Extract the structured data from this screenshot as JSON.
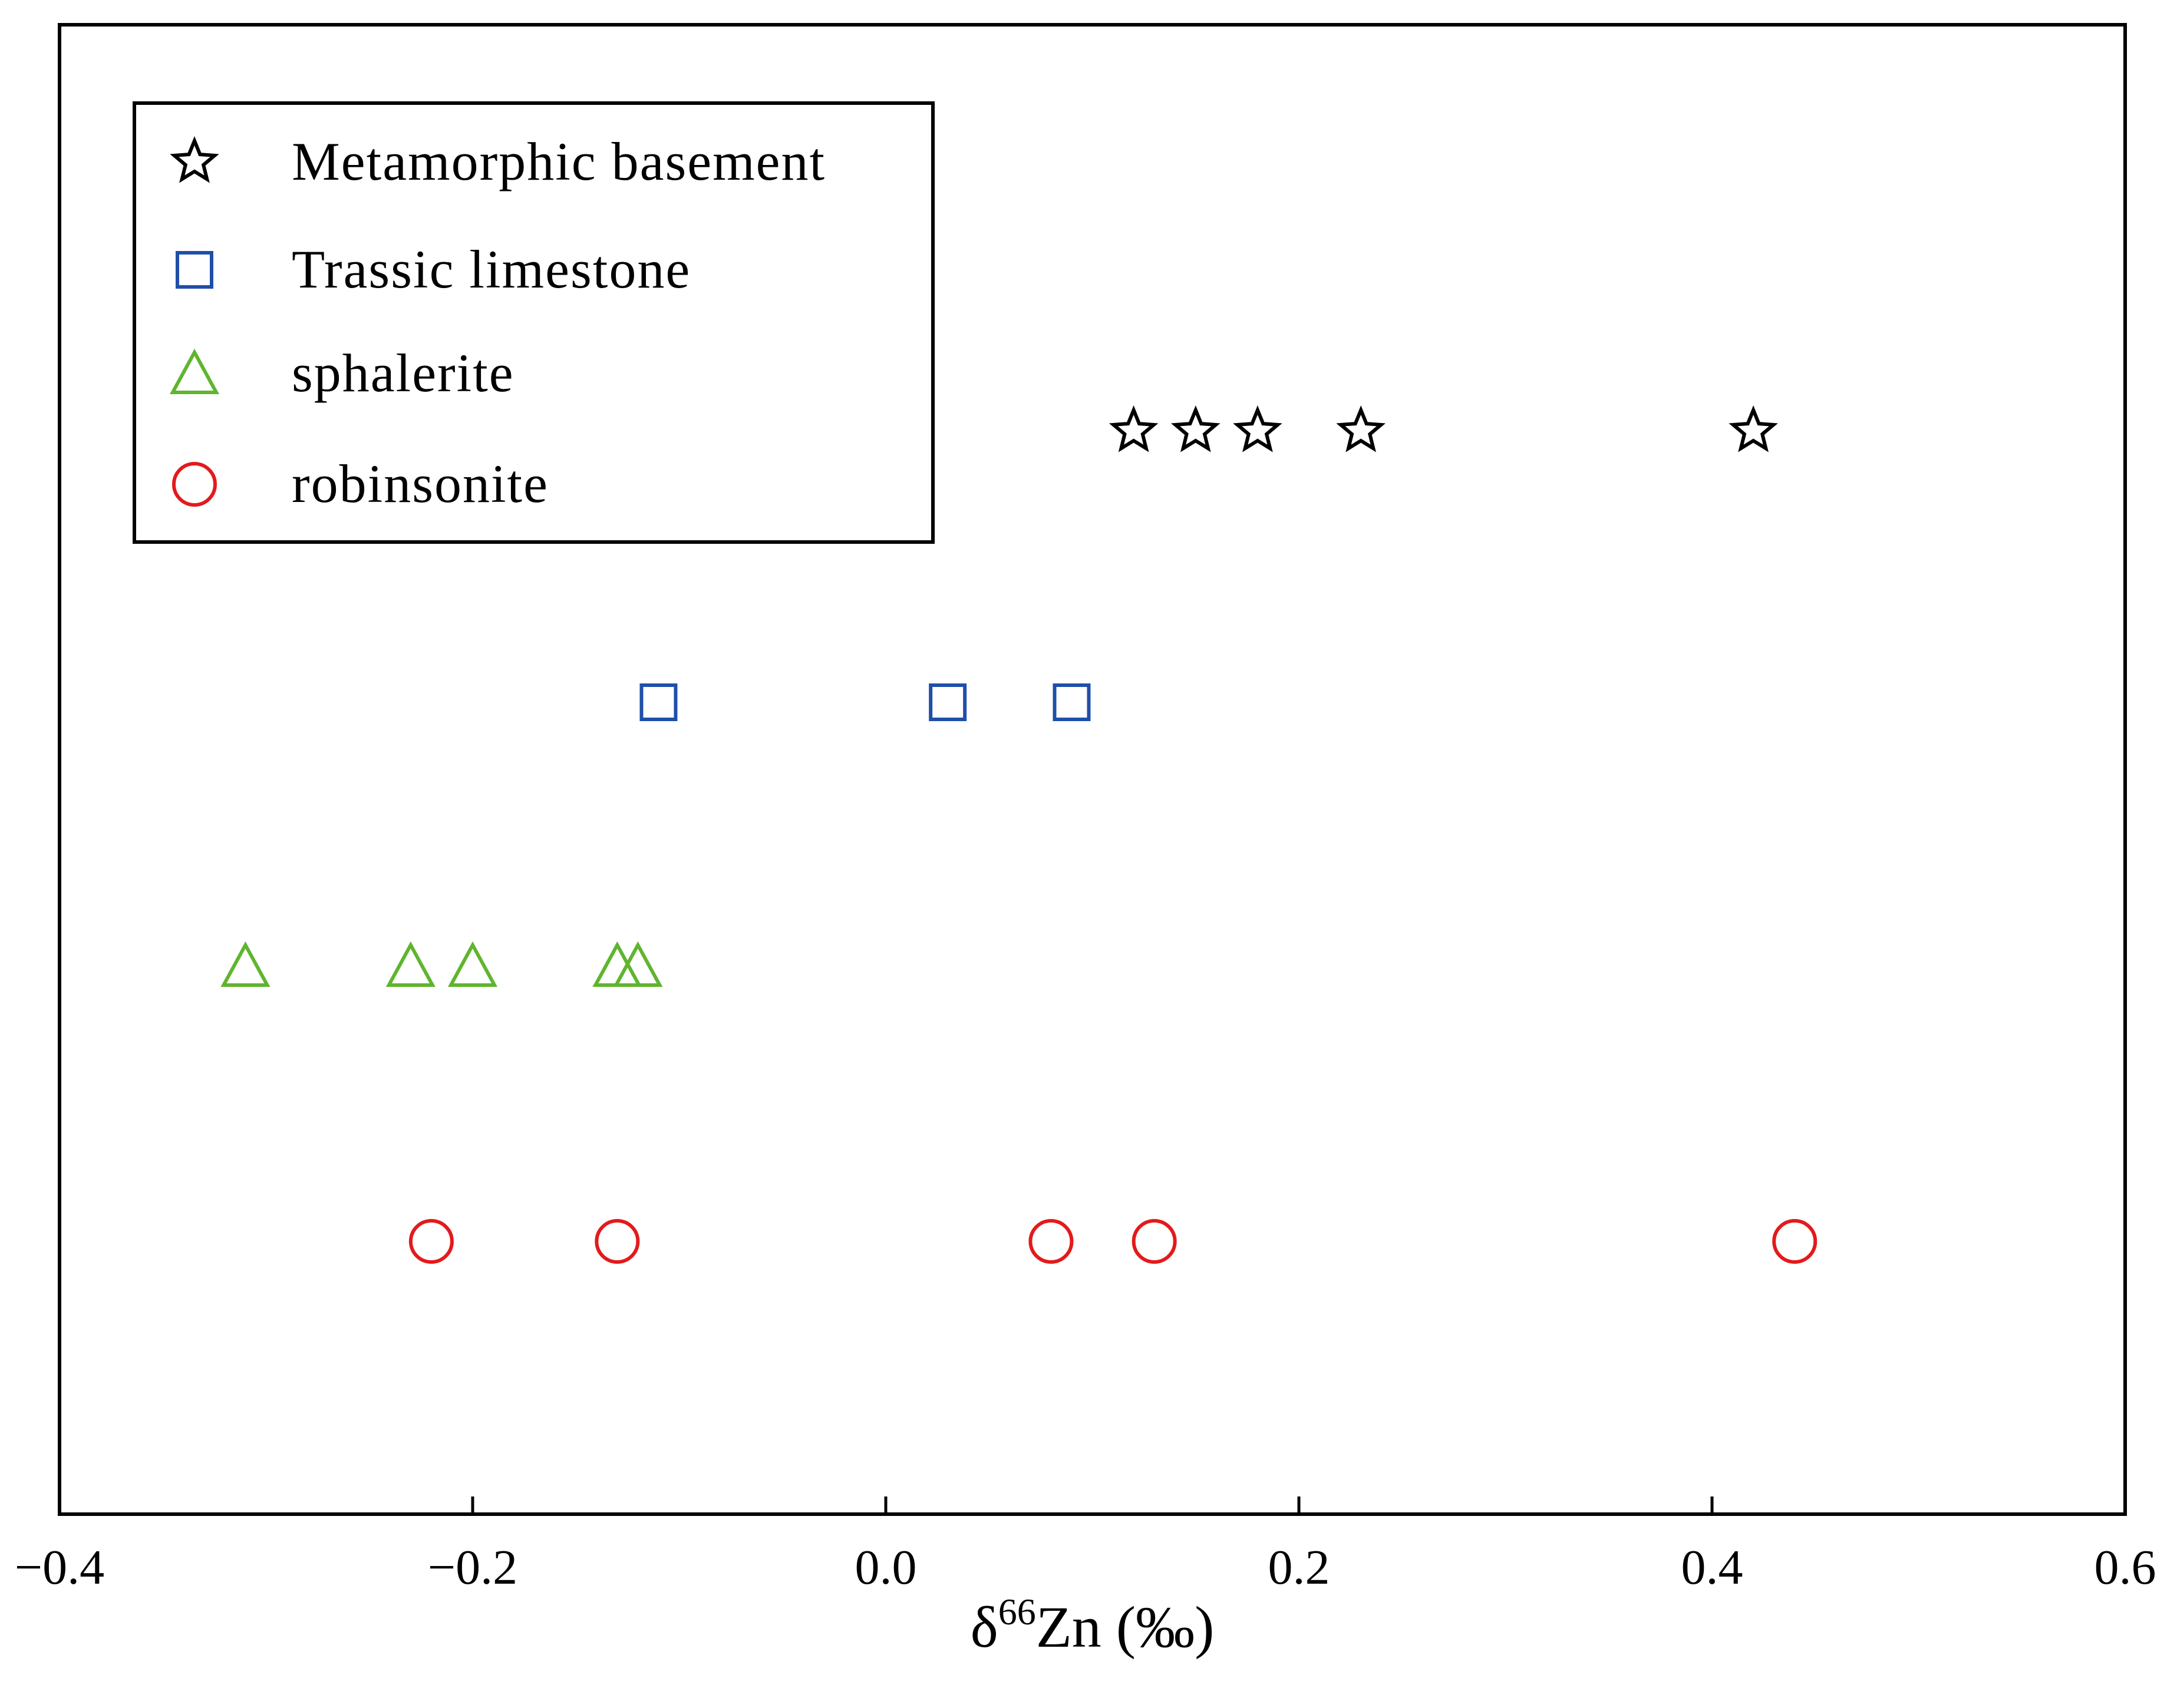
{
  "chart_data": {
    "type": "scatter",
    "title": "",
    "xlabel": {
      "prefix": "δ",
      "superscript": "66",
      "suffix": "Zn (‰)"
    },
    "ylabel": "",
    "xlim": [
      -0.4,
      0.6
    ],
    "xticks": [
      {
        "value": -0.4,
        "label": "−0.4"
      },
      {
        "value": -0.2,
        "label": "−0.2"
      },
      {
        "value": 0.0,
        "label": "0.0"
      },
      {
        "value": 0.2,
        "label": "0.2"
      },
      {
        "value": 0.4,
        "label": "0.4"
      },
      {
        "value": 0.6,
        "label": "0.6"
      }
    ],
    "grid": false,
    "legend_position": "top-left",
    "series": [
      {
        "name": "Metamorphic basement",
        "marker": "star",
        "color": "#000000",
        "row": 1,
        "x": [
          0.12,
          0.15,
          0.18,
          0.23,
          0.42
        ]
      },
      {
        "name": "Trassic limestone",
        "marker": "square",
        "color": "#1f4fa8",
        "row": 2,
        "x": [
          -0.11,
          0.03,
          0.09
        ]
      },
      {
        "name": "sphalerite",
        "marker": "triangle",
        "color": "#5fb52e",
        "row": 3,
        "x": [
          -0.31,
          -0.23,
          -0.2,
          -0.13,
          -0.12
        ]
      },
      {
        "name": "robinsonite",
        "marker": "circle",
        "color": "#e31a1c",
        "row": 4,
        "x": [
          -0.22,
          -0.13,
          0.08,
          0.13,
          0.44
        ]
      }
    ]
  }
}
